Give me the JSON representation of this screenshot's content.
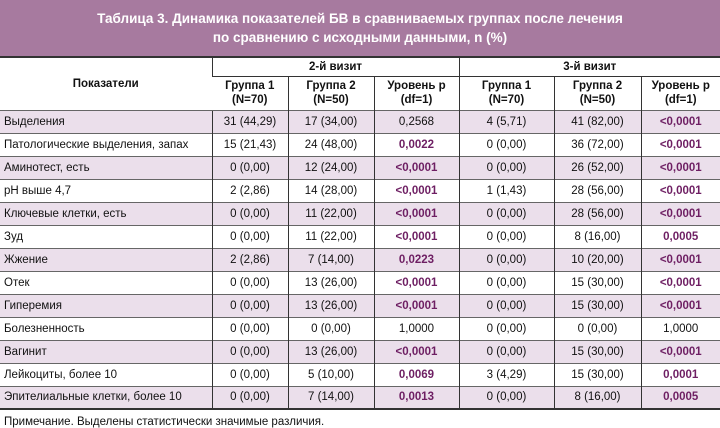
{
  "title": {
    "line1": "Таблица 3. Динамика показателей БВ в сравниваемых группах после лечения",
    "line2": "по сравнению с исходными данными, n (%)"
  },
  "header": {
    "indicator": "Показатели",
    "visit2": "2-й визит",
    "visit3": "3-й визит",
    "group1": "Группа 1",
    "group1_n": "(N=70)",
    "group2": "Группа 2",
    "group2_n": "(N=50)",
    "p_level": "Уровень p",
    "p_df": "(df=1)"
  },
  "rows": [
    {
      "label": "Выделения",
      "v2": [
        "31 (44,29)",
        "17 (34,00)",
        "0,2568"
      ],
      "v2sig": false,
      "v3": [
        "4 (5,71)",
        "41 (82,00)",
        "<0,0001"
      ],
      "v3sig": true
    },
    {
      "label": "Патологические выделения, запах",
      "v2": [
        "15 (21,43)",
        "24 (48,00)",
        "0,0022"
      ],
      "v2sig": true,
      "v3": [
        "0 (0,00)",
        "36 (72,00)",
        "<0,0001"
      ],
      "v3sig": true
    },
    {
      "label": "Аминотест, есть",
      "v2": [
        "0 (0,00)",
        "12 (24,00)",
        "<0,0001"
      ],
      "v2sig": true,
      "v3": [
        "0 (0,00)",
        "26 (52,00)",
        "<0,0001"
      ],
      "v3sig": true
    },
    {
      "label": "pH выше 4,7",
      "v2": [
        "2 (2,86)",
        "14 (28,00)",
        "<0,0001"
      ],
      "v2sig": true,
      "v3": [
        "1 (1,43)",
        "28 (56,00)",
        "<0,0001"
      ],
      "v3sig": true
    },
    {
      "label": "Ключевые клетки, есть",
      "v2": [
        "0 (0,00)",
        "11 (22,00)",
        "<0,0001"
      ],
      "v2sig": true,
      "v3": [
        "0 (0,00)",
        "28 (56,00)",
        "<0,0001"
      ],
      "v3sig": true
    },
    {
      "label": "Зуд",
      "v2": [
        "0 (0,00)",
        "11 (22,00)",
        "<0,0001"
      ],
      "v2sig": true,
      "v3": [
        "0 (0,00)",
        "8 (16,00)",
        "0,0005"
      ],
      "v3sig": true
    },
    {
      "label": "Жжение",
      "v2": [
        "2 (2,86)",
        "7 (14,00)",
        "0,0223"
      ],
      "v2sig": true,
      "v3": [
        "0 (0,00)",
        "10 (20,00)",
        "<0,0001"
      ],
      "v3sig": true
    },
    {
      "label": "Отек",
      "v2": [
        "0 (0,00)",
        "13 (26,00)",
        "<0,0001"
      ],
      "v2sig": true,
      "v3": [
        "0 (0,00)",
        "15 (30,00)",
        "<0,0001"
      ],
      "v3sig": true
    },
    {
      "label": "Гиперемия",
      "v2": [
        "0 (0,00)",
        "13 (26,00)",
        "<0,0001"
      ],
      "v2sig": true,
      "v3": [
        "0 (0,00)",
        "15 (30,00)",
        "<0,0001"
      ],
      "v3sig": true
    },
    {
      "label": "Болезненность",
      "v2": [
        "0 (0,00)",
        "0 (0,00)",
        "1,0000"
      ],
      "v2sig": false,
      "v3": [
        "0 (0,00)",
        "0 (0,00)",
        "1,0000"
      ],
      "v3sig": false
    },
    {
      "label": "Вагинит",
      "v2": [
        "0 (0,00)",
        "13 (26,00)",
        "<0,0001"
      ],
      "v2sig": true,
      "v3": [
        "0 (0,00)",
        "15 (30,00)",
        "<0,0001"
      ],
      "v3sig": true
    },
    {
      "label": "Лейкоциты, более 10",
      "v2": [
        "0 (0,00)",
        "5 (10,00)",
        "0,0069"
      ],
      "v2sig": true,
      "v3": [
        "3 (4,29)",
        "15 (30,00)",
        "0,0001"
      ],
      "v3sig": true
    },
    {
      "label": "Эпителиальные клетки, более 10",
      "v2": [
        "0 (0,00)",
        "7 (14,00)",
        "0,0013"
      ],
      "v2sig": true,
      "v3": [
        "0 (0,00)",
        "8 (16,00)",
        "0,0005"
      ],
      "v3sig": true
    }
  ],
  "note": "Примечание. Выделены статистически значимые различия.",
  "colors": {
    "title_bg": "#a77a9f",
    "row_alt": "#ebdfeb",
    "significant": "#6e1f63"
  }
}
